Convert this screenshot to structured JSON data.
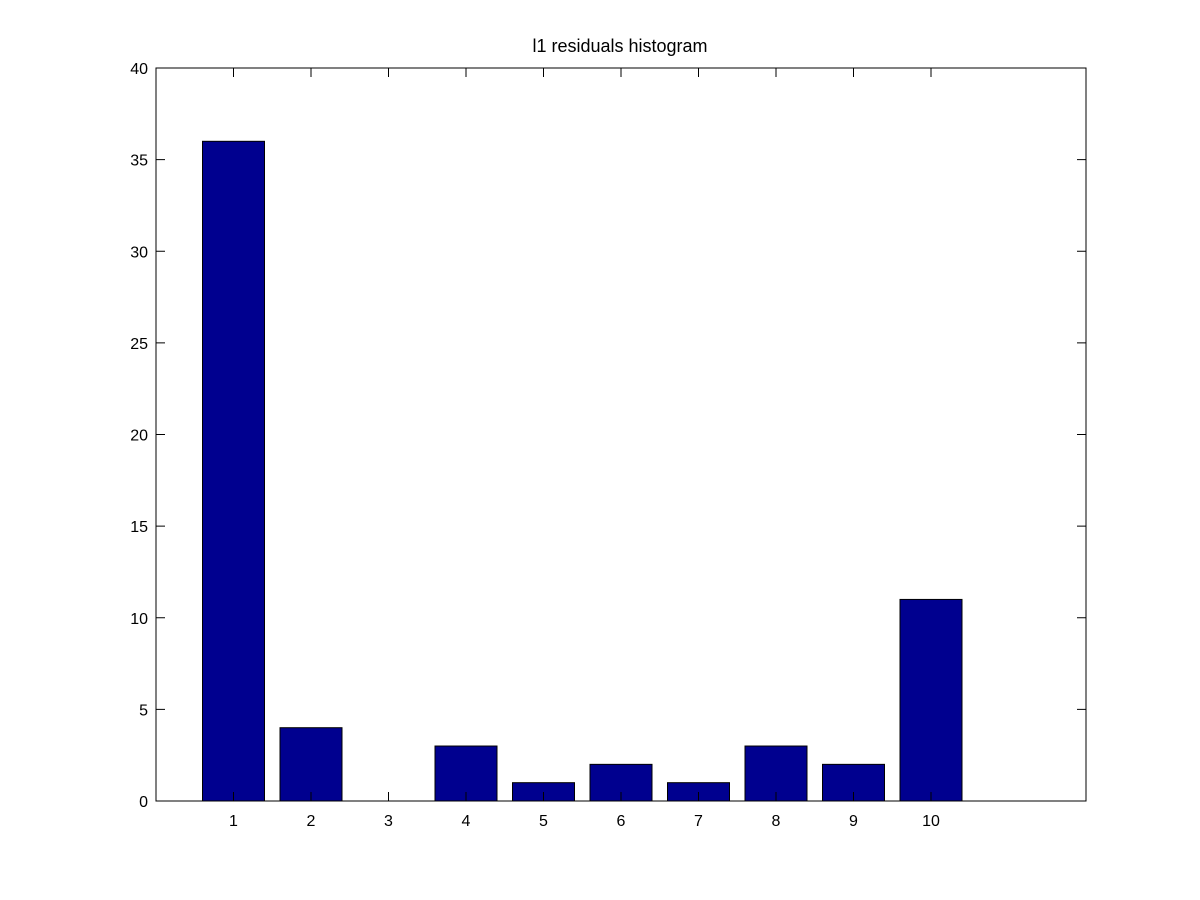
{
  "chart_data": {
    "type": "bar",
    "title": "l1 residuals histogram",
    "xlabel": "",
    "ylabel": "",
    "categories": [
      "1",
      "2",
      "3",
      "4",
      "5",
      "6",
      "7",
      "8",
      "9",
      "10"
    ],
    "values": [
      36,
      4,
      0,
      3,
      1,
      2,
      1,
      3,
      2,
      11
    ],
    "xlim": [
      0,
      12
    ],
    "ylim": [
      0,
      40
    ],
    "yticks": [
      "0",
      "5",
      "10",
      "15",
      "20",
      "25",
      "30",
      "35",
      "40"
    ],
    "bar_color": "#00008f",
    "grid": false
  }
}
